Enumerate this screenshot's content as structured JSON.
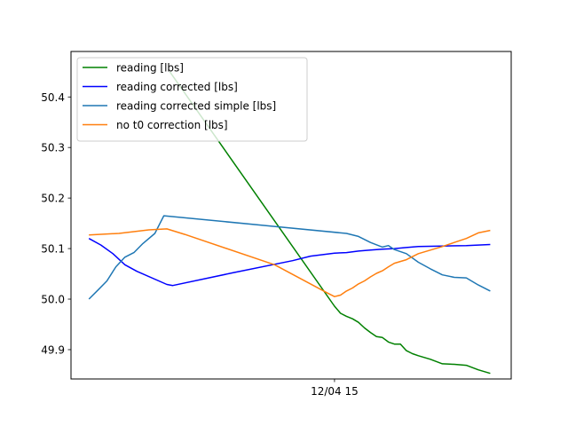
{
  "chart_data": {
    "type": "line",
    "title": "",
    "xlabel": "",
    "ylabel": "",
    "x_ticks": [
      {
        "label": "12/04 15",
        "x": 15.0
      }
    ],
    "xlim": [
      10.6,
      17.95
    ],
    "ylim": [
      49.842,
      50.49
    ],
    "y_ticks": [
      49.9,
      50.0,
      50.1,
      50.2,
      50.3,
      50.4
    ],
    "grid": false,
    "legend_position": "top-left",
    "series": [
      {
        "name": "reading [lbs]",
        "color": "#008000",
        "x": [
          12.25,
          15.0,
          15.1,
          15.2,
          15.3,
          15.4,
          15.5,
          15.6,
          15.7,
          15.8,
          15.9,
          16.0,
          16.1,
          16.2,
          16.3,
          16.4,
          16.6,
          16.8,
          17.0,
          17.2,
          17.4,
          17.6
        ],
        "y": [
          50.45,
          49.986,
          49.972,
          49.966,
          49.961,
          49.954,
          49.943,
          49.934,
          49.926,
          49.924,
          49.915,
          49.911,
          49.911,
          49.898,
          49.892,
          49.888,
          49.881,
          49.872,
          49.871,
          49.869,
          49.86,
          49.853
        ]
      },
      {
        "name": "reading corrected [lbs]",
        "color": "#0000ff",
        "x": [
          10.9,
          11.1,
          11.3,
          11.5,
          11.7,
          12.2,
          12.3,
          13.3,
          14.3,
          14.6,
          15.0,
          15.2,
          15.4,
          15.6,
          15.8,
          16.0,
          16.2,
          16.4,
          16.8,
          17.2,
          17.6
        ],
        "y": [
          50.12,
          50.107,
          50.09,
          50.068,
          50.055,
          50.029,
          50.027,
          50.052,
          50.076,
          50.085,
          50.091,
          50.092,
          50.095,
          50.097,
          50.099,
          50.1,
          50.102,
          50.104,
          50.105,
          50.106,
          50.108
        ]
      },
      {
        "name": "reading corrected simple [lbs]",
        "color": "#1f77b4",
        "x": [
          10.9,
          11.05,
          11.2,
          11.35,
          11.5,
          11.65,
          11.8,
          12.0,
          12.15,
          15.2,
          15.4,
          15.6,
          15.8,
          15.9,
          16.0,
          16.2,
          16.4,
          16.6,
          16.8,
          17.0,
          17.2,
          17.4,
          17.6
        ],
        "y": [
          50.0,
          50.018,
          50.036,
          50.064,
          50.083,
          50.092,
          50.11,
          50.13,
          50.165,
          50.13,
          50.124,
          50.112,
          50.103,
          50.106,
          50.098,
          50.09,
          50.073,
          50.06,
          50.048,
          50.043,
          50.042,
          50.028,
          50.016
        ]
      },
      {
        "name": "no t0 correction [lbs]",
        "color": "#ff7f0e",
        "x": [
          10.9,
          11.4,
          11.9,
          12.2,
          12.5,
          14.0,
          14.9,
          15.0,
          15.1,
          15.2,
          15.3,
          15.4,
          15.5,
          15.6,
          15.7,
          15.8,
          15.9,
          16.0,
          16.2,
          16.4,
          16.6,
          16.8,
          17.0,
          17.2,
          17.4,
          17.6
        ],
        "y": [
          50.127,
          50.13,
          50.137,
          50.139,
          50.128,
          50.068,
          50.011,
          50.005,
          50.008,
          50.016,
          50.022,
          50.03,
          50.036,
          50.044,
          50.051,
          50.056,
          50.064,
          50.071,
          50.078,
          50.09,
          50.097,
          50.104,
          50.112,
          50.12,
          50.131,
          50.136
        ]
      }
    ]
  }
}
